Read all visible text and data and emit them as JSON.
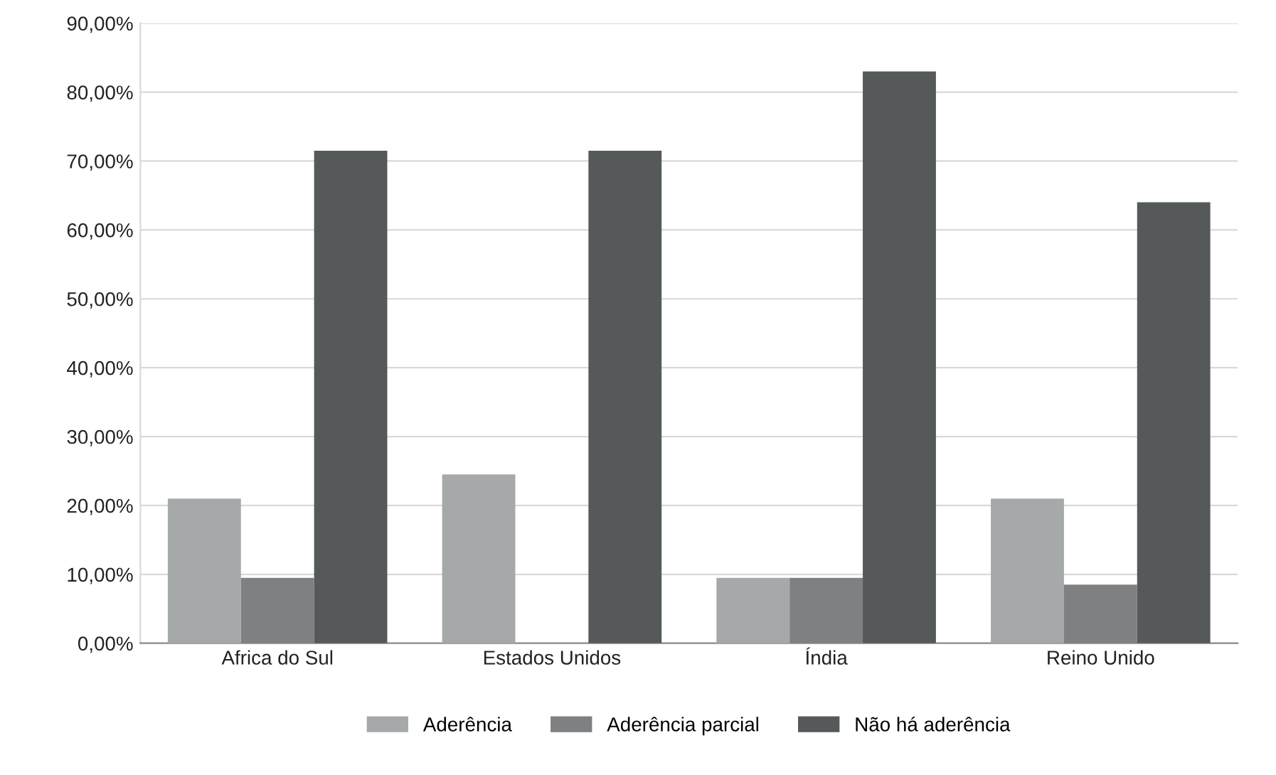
{
  "chart_data": {
    "type": "bar",
    "categories": [
      "Africa do Sul",
      "Estados Unidos",
      "Índia",
      "Reino Unido"
    ],
    "series": [
      {
        "name": "Aderência",
        "color": "#a6a9aa",
        "values": [
          21,
          24.5,
          9.5,
          21
        ]
      },
      {
        "name": "Aderência parcial",
        "color": "#7e8081",
        "values": [
          9.5,
          0,
          9.5,
          8.5
        ]
      },
      {
        "name": "Não há aderência",
        "color": "#55595a",
        "values": [
          71.5,
          71.5,
          83,
          64
        ]
      }
    ],
    "ylim": [
      0,
      90
    ],
    "yticks": [
      {
        "value": 0,
        "label": "0,00%"
      },
      {
        "value": 10,
        "label": "10,00%"
      },
      {
        "value": 20,
        "label": "20,00%"
      },
      {
        "value": 30,
        "label": "30,00%"
      },
      {
        "value": 40,
        "label": "40,00%"
      },
      {
        "value": 50,
        "label": "50,00%"
      },
      {
        "value": 60,
        "label": "60,00%"
      },
      {
        "value": 70,
        "label": "70,00%"
      },
      {
        "value": 80,
        "label": "80,00%"
      },
      {
        "value": 90,
        "label": "90,00%"
      }
    ],
    "grid": "y",
    "legend": "bottom"
  }
}
